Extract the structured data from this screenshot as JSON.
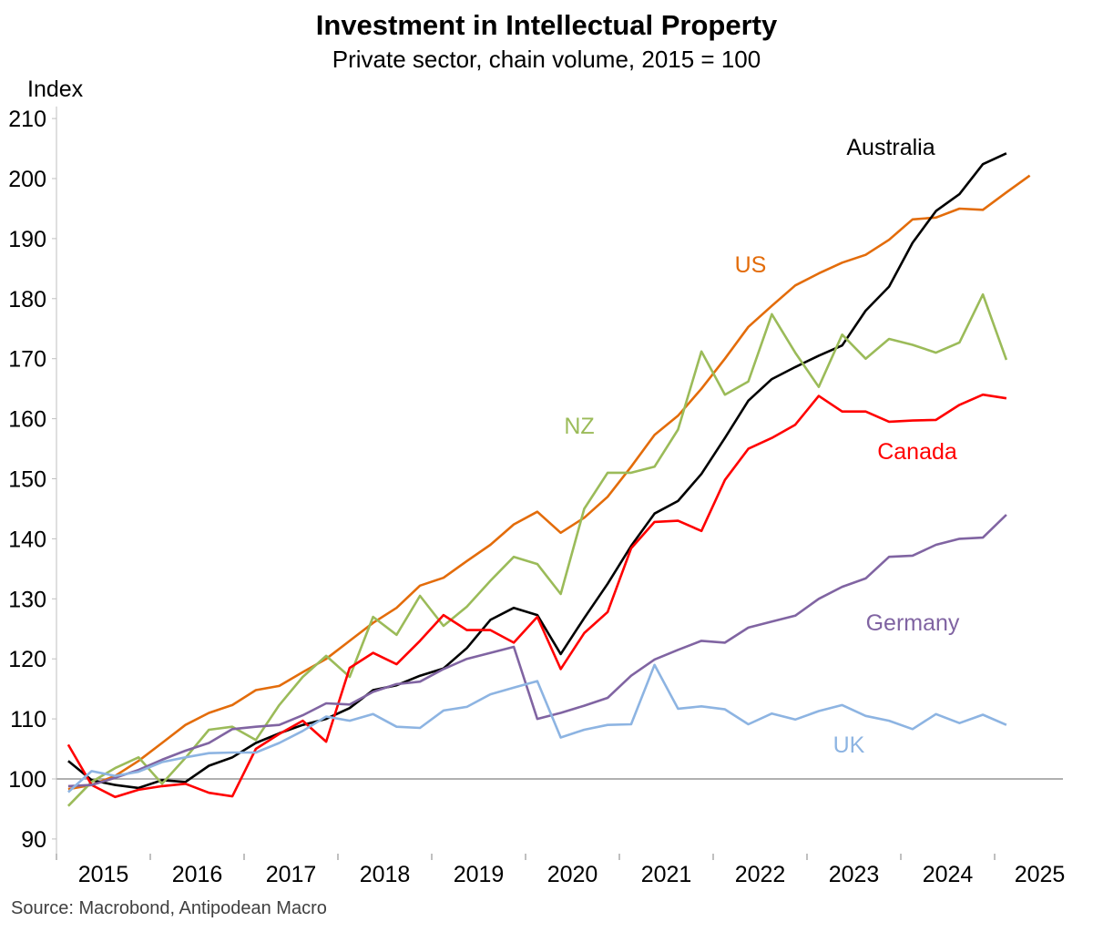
{
  "chart_data": {
    "type": "line",
    "title": "Investment in Intellectual Property",
    "subtitle": "Private sector, chain volume, 2015 = 100",
    "ylabel": "Index",
    "xlabel": "",
    "ylim": [
      88,
      212
    ],
    "yticks": [
      90,
      100,
      110,
      120,
      130,
      140,
      150,
      160,
      170,
      180,
      190,
      200,
      210
    ],
    "xticks": [
      "2015",
      "2016",
      "2017",
      "2018",
      "2019",
      "2020",
      "2021",
      "2022",
      "2023",
      "2024",
      "2025"
    ],
    "x_start": "2015 Q1",
    "x_frequency": "quarterly",
    "reference_line": 100,
    "source": "Source: Macrobond, Antipodean Macro",
    "series": [
      {
        "name": "US",
        "color": "#E36C0A",
        "values": [
          98.3,
          99,
          100.5,
          103,
          106,
          109,
          111,
          112.3,
          114.8,
          115.5,
          117.8,
          120,
          123,
          126,
          128.5,
          132.2,
          133.5,
          136.3,
          139,
          142.4,
          144.5,
          141,
          143.5,
          147,
          152,
          157.3,
          160.5,
          165,
          170,
          175.3,
          178.8,
          182.2,
          184.2,
          186,
          187.3,
          189.8,
          193.2,
          193.5,
          195,
          194.8,
          197.7,
          200.5
        ]
      },
      {
        "name": "Australia",
        "color": "#000000",
        "values": [
          103,
          99.8,
          99,
          98.5,
          99.8,
          99.5,
          102.2,
          103.6,
          106,
          107.6,
          109,
          110,
          111.8,
          114.8,
          115.6,
          117.2,
          118.4,
          121.8,
          126.5,
          128.5,
          127.3,
          120.8,
          126.8,
          132.5,
          138.8,
          144.2,
          146.3,
          150.8,
          156.8,
          163,
          166.6,
          168.6,
          170.5,
          172.2,
          178,
          182,
          189.3,
          194.6,
          197.4,
          202.4,
          204.2
        ]
      },
      {
        "name": "NZ",
        "color": "#9BBB59",
        "values": [
          95.5,
          99.5,
          101.8,
          103.6,
          99.2,
          103.5,
          108.2,
          108.7,
          106.5,
          112.3,
          117,
          120.5,
          117,
          127,
          124,
          130.5,
          125.5,
          128.7,
          133,
          137,
          135.8,
          130.8,
          145,
          151,
          151,
          152,
          158.2,
          171.2,
          164,
          166.2,
          177.4,
          171,
          165.3,
          174,
          170,
          173.3,
          172.3,
          171,
          172.7,
          180.7,
          169.8
        ]
      },
      {
        "name": "Canada",
        "color": "#FF0000",
        "values": [
          105.7,
          99,
          97,
          98.2,
          98.8,
          99.2,
          97.7,
          97.1,
          105,
          107.5,
          109.7,
          106.2,
          118.5,
          121,
          119.1,
          123,
          127.3,
          124.8,
          124.8,
          122.7,
          127,
          118.3,
          124.3,
          127.8,
          138.4,
          142.8,
          143,
          141.3,
          149.8,
          155,
          156.8,
          159,
          163.8,
          161.2,
          161.2,
          159.5,
          159.7,
          159.8,
          162.3,
          164,
          163.4
        ]
      },
      {
        "name": "Germany",
        "color": "#8064A2",
        "values": [
          98.8,
          99,
          100.2,
          101.5,
          103.2,
          104.7,
          106,
          108.3,
          108.7,
          109,
          110.6,
          112.6,
          112.4,
          114.5,
          115.8,
          116.2,
          118.3,
          120,
          121,
          122,
          110,
          111,
          112.2,
          113.5,
          117.2,
          119.9,
          121.5,
          123,
          122.7,
          125.2,
          126.2,
          127.2,
          130,
          132,
          133.4,
          137,
          137.2,
          139,
          140,
          140.2,
          144
        ]
      },
      {
        "name": "UK",
        "color": "#8DB4E2",
        "values": [
          97.8,
          101.3,
          100.5,
          101.2,
          102.8,
          103.6,
          104.3,
          104.4,
          104.4,
          106,
          108,
          110.4,
          109.7,
          110.8,
          108.7,
          108.5,
          111.4,
          112,
          114.1,
          115.2,
          116.3,
          106.9,
          108.2,
          109,
          109.1,
          119,
          111.7,
          112.1,
          111.6,
          109.1,
          110.9,
          109.9,
          111.3,
          112.3,
          110.5,
          109.7,
          108.3,
          110.8,
          109.3,
          110.7,
          109
        ]
      }
    ]
  }
}
